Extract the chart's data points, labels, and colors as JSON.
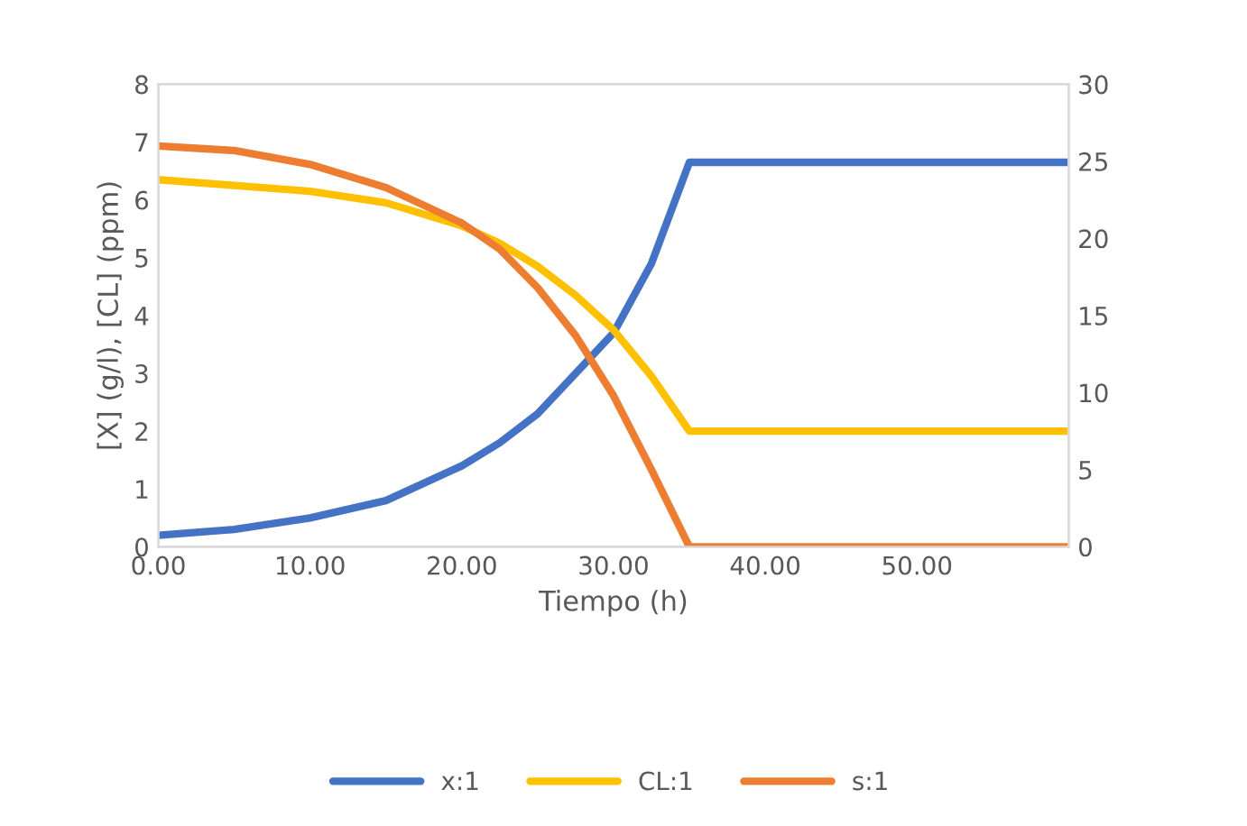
{
  "chart_data": {
    "type": "line",
    "xlabel": "Tiempo (h)",
    "ylabel": "[X] (g/l), [CL] (ppm)",
    "xlim": [
      0,
      60
    ],
    "xticks": [
      {
        "value": 0,
        "label": "0.00"
      },
      {
        "value": 10,
        "label": "10.00"
      },
      {
        "value": 20,
        "label": "20.00"
      },
      {
        "value": 30,
        "label": "30.00"
      },
      {
        "value": 40,
        "label": "40.00"
      },
      {
        "value": 50,
        "label": "50.00"
      }
    ],
    "ylim": [
      0,
      8
    ],
    "yticks": [
      0,
      1,
      2,
      3,
      4,
      5,
      6,
      7,
      8
    ],
    "y2lim": [
      0,
      30
    ],
    "y2ticks": [
      0,
      5,
      10,
      15,
      20,
      25,
      30
    ],
    "x": [
      0,
      5,
      10,
      15,
      20,
      22.5,
      25,
      27.5,
      30,
      32.5,
      35,
      60
    ],
    "series": [
      {
        "name": "x:1",
        "color": "#4472c4",
        "values": [
          0.2,
          0.3,
          0.5,
          0.8,
          1.4,
          1.8,
          2.3,
          3.0,
          3.7,
          4.9,
          6.65,
          6.65
        ]
      },
      {
        "name": "CL:1",
        "color": "#ffc000",
        "values": [
          6.35,
          6.25,
          6.15,
          5.95,
          5.55,
          5.25,
          4.85,
          4.35,
          3.75,
          2.95,
          2.0,
          2.0
        ]
      },
      {
        "name": "s:1",
        "color": "#ed7d31",
        "axis": "y2",
        "values": [
          26,
          25.7,
          24.8,
          23.3,
          21,
          19.3,
          16.8,
          13.7,
          9.8,
          5,
          0,
          0
        ]
      }
    ],
    "grid": false,
    "legend": "bottom",
    "marker": "none",
    "line_style": "solid"
  }
}
